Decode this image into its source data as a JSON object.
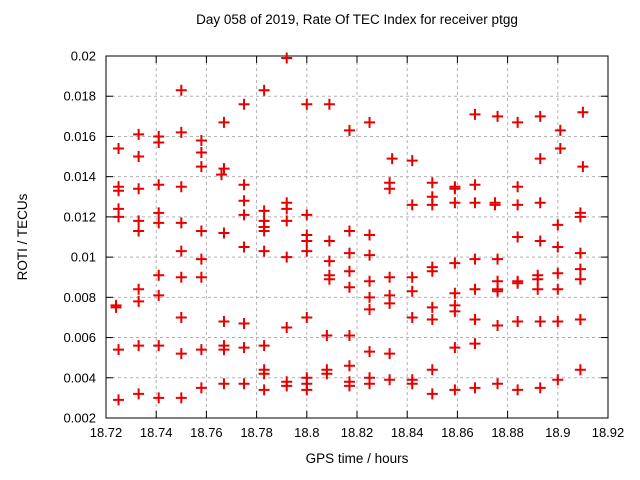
{
  "page": {
    "background": "#ffffff"
  },
  "chart_data": {
    "type": "scatter",
    "title": "Day 058 of 2019, Rate Of TEC Index for receiver ptgg",
    "xlabel": "GPS time / hours",
    "ylabel": "ROTI / TECUs",
    "xlim": [
      18.72,
      18.92
    ],
    "ylim": [
      0.002,
      0.02
    ],
    "grid": true,
    "legend": "none",
    "marker": "plus",
    "marker_color": "#e60000",
    "x_ticks": [
      18.72,
      18.74,
      18.76,
      18.78,
      18.8,
      18.82,
      18.84,
      18.86,
      18.88,
      18.9,
      18.92
    ],
    "x_tick_labels": [
      "18.72",
      "18.74",
      "18.76",
      "18.78",
      "18.8",
      "18.82",
      "18.84",
      "18.86",
      "18.88",
      "18.9",
      "18.92"
    ],
    "y_ticks": [
      0.002,
      0.004,
      0.006,
      0.008,
      0.01,
      0.012,
      0.014,
      0.016,
      0.018,
      0.02
    ],
    "y_tick_labels": [
      "0.002",
      "0.004",
      "0.006",
      "0.008",
      "0.01",
      "0.012",
      "0.014",
      "0.016",
      "0.018",
      "0.02"
    ],
    "points": [
      [
        18.725,
        0.0154
      ],
      [
        18.725,
        0.0135
      ],
      [
        18.725,
        0.0133
      ],
      [
        18.725,
        0.0124
      ],
      [
        18.725,
        0.012
      ],
      [
        18.724,
        0.0076
      ],
      [
        18.724,
        0.0075
      ],
      [
        18.725,
        0.0054
      ],
      [
        18.725,
        0.0029
      ],
      [
        18.733,
        0.0161
      ],
      [
        18.733,
        0.015
      ],
      [
        18.733,
        0.0134
      ],
      [
        18.733,
        0.0118
      ],
      [
        18.733,
        0.0113
      ],
      [
        18.733,
        0.0084
      ],
      [
        18.733,
        0.0078
      ],
      [
        18.733,
        0.0056
      ],
      [
        18.733,
        0.0032
      ],
      [
        18.741,
        0.016
      ],
      [
        18.741,
        0.0157
      ],
      [
        18.741,
        0.0136
      ],
      [
        18.741,
        0.0122
      ],
      [
        18.741,
        0.0117
      ],
      [
        18.741,
        0.0091
      ],
      [
        18.741,
        0.0081
      ],
      [
        18.741,
        0.0056
      ],
      [
        18.741,
        0.003
      ],
      [
        18.75,
        0.0183
      ],
      [
        18.75,
        0.0162
      ],
      [
        18.75,
        0.0135
      ],
      [
        18.75,
        0.0117
      ],
      [
        18.75,
        0.0103
      ],
      [
        18.75,
        0.009
      ],
      [
        18.75,
        0.007
      ],
      [
        18.75,
        0.0052
      ],
      [
        18.75,
        0.003
      ],
      [
        18.758,
        0.0158
      ],
      [
        18.758,
        0.0152
      ],
      [
        18.758,
        0.0145
      ],
      [
        18.758,
        0.0113
      ],
      [
        18.758,
        0.0099
      ],
      [
        18.758,
        0.009
      ],
      [
        18.758,
        0.0054
      ],
      [
        18.758,
        0.0035
      ],
      [
        18.767,
        0.0167
      ],
      [
        18.767,
        0.0144
      ],
      [
        18.766,
        0.0141
      ],
      [
        18.767,
        0.0112
      ],
      [
        18.767,
        0.0068
      ],
      [
        18.767,
        0.0056
      ],
      [
        18.767,
        0.0054
      ],
      [
        18.767,
        0.0037
      ],
      [
        18.775,
        0.0176
      ],
      [
        18.775,
        0.0136
      ],
      [
        18.775,
        0.0128
      ],
      [
        18.775,
        0.0121
      ],
      [
        18.775,
        0.0105
      ],
      [
        18.775,
        0.0067
      ],
      [
        18.775,
        0.0055
      ],
      [
        18.775,
        0.0037
      ],
      [
        18.783,
        0.0183
      ],
      [
        18.783,
        0.0123
      ],
      [
        18.783,
        0.0118
      ],
      [
        18.783,
        0.0115
      ],
      [
        18.783,
        0.0113
      ],
      [
        18.783,
        0.0103
      ],
      [
        18.783,
        0.0056
      ],
      [
        18.783,
        0.0044
      ],
      [
        18.783,
        0.0042
      ],
      [
        18.783,
        0.0034
      ],
      [
        18.792,
        0.0199
      ],
      [
        18.792,
        0.0127
      ],
      [
        18.792,
        0.0124
      ],
      [
        18.792,
        0.0118
      ],
      [
        18.792,
        0.01
      ],
      [
        18.792,
        0.0065
      ],
      [
        18.792,
        0.0038
      ],
      [
        18.792,
        0.0036
      ],
      [
        18.8,
        0.0176
      ],
      [
        18.8,
        0.0121
      ],
      [
        18.8,
        0.0111
      ],
      [
        18.8,
        0.0108
      ],
      [
        18.8,
        0.0103
      ],
      [
        18.8,
        0.007
      ],
      [
        18.8,
        0.004
      ],
      [
        18.8,
        0.0037
      ],
      [
        18.8,
        0.0034
      ],
      [
        18.809,
        0.0176
      ],
      [
        18.809,
        0.0108
      ],
      [
        18.809,
        0.0098
      ],
      [
        18.809,
        0.0091
      ],
      [
        18.809,
        0.0089
      ],
      [
        18.808,
        0.0061
      ],
      [
        18.808,
        0.0044
      ],
      [
        18.808,
        0.0042
      ],
      [
        18.817,
        0.0163
      ],
      [
        18.817,
        0.0113
      ],
      [
        18.817,
        0.0102
      ],
      [
        18.817,
        0.0093
      ],
      [
        18.817,
        0.0085
      ],
      [
        18.817,
        0.0061
      ],
      [
        18.817,
        0.0046
      ],
      [
        18.817,
        0.0038
      ],
      [
        18.817,
        0.0036
      ],
      [
        18.825,
        0.0167
      ],
      [
        18.825,
        0.0111
      ],
      [
        18.825,
        0.0101
      ],
      [
        18.825,
        0.0088
      ],
      [
        18.825,
        0.008
      ],
      [
        18.825,
        0.0074
      ],
      [
        18.825,
        0.0053
      ],
      [
        18.825,
        0.004
      ],
      [
        18.825,
        0.0037
      ],
      [
        18.834,
        0.0149
      ],
      [
        18.833,
        0.0137
      ],
      [
        18.833,
        0.0134
      ],
      [
        18.833,
        0.009
      ],
      [
        18.833,
        0.0081
      ],
      [
        18.833,
        0.0077
      ],
      [
        18.833,
        0.0052
      ],
      [
        18.833,
        0.0039
      ],
      [
        18.842,
        0.0148
      ],
      [
        18.842,
        0.0126
      ],
      [
        18.842,
        0.009
      ],
      [
        18.842,
        0.0083
      ],
      [
        18.842,
        0.007
      ],
      [
        18.842,
        0.0039
      ],
      [
        18.842,
        0.0037
      ],
      [
        18.85,
        0.0137
      ],
      [
        18.85,
        0.013
      ],
      [
        18.85,
        0.0126
      ],
      [
        18.85,
        0.0095
      ],
      [
        18.85,
        0.0093
      ],
      [
        18.85,
        0.0075
      ],
      [
        18.85,
        0.0069
      ],
      [
        18.85,
        0.0044
      ],
      [
        18.85,
        0.0032
      ],
      [
        18.859,
        0.0135
      ],
      [
        18.859,
        0.0134
      ],
      [
        18.859,
        0.0127
      ],
      [
        18.859,
        0.0097
      ],
      [
        18.859,
        0.0082
      ],
      [
        18.859,
        0.0076
      ],
      [
        18.859,
        0.0073
      ],
      [
        18.859,
        0.0055
      ],
      [
        18.859,
        0.0034
      ],
      [
        18.867,
        0.0171
      ],
      [
        18.867,
        0.0136
      ],
      [
        18.867,
        0.0127
      ],
      [
        18.867,
        0.0099
      ],
      [
        18.867,
        0.0084
      ],
      [
        18.867,
        0.0069
      ],
      [
        18.867,
        0.0057
      ],
      [
        18.867,
        0.0035
      ],
      [
        18.876,
        0.017
      ],
      [
        18.875,
        0.0127
      ],
      [
        18.875,
        0.0126
      ],
      [
        18.876,
        0.0099
      ],
      [
        18.876,
        0.0088
      ],
      [
        18.876,
        0.0084
      ],
      [
        18.876,
        0.0083
      ],
      [
        18.876,
        0.0066
      ],
      [
        18.876,
        0.0037
      ],
      [
        18.884,
        0.0167
      ],
      [
        18.884,
        0.0135
      ],
      [
        18.884,
        0.0126
      ],
      [
        18.884,
        0.011
      ],
      [
        18.884,
        0.0088
      ],
      [
        18.884,
        0.0087
      ],
      [
        18.884,
        0.0068
      ],
      [
        18.884,
        0.0034
      ],
      [
        18.893,
        0.017
      ],
      [
        18.893,
        0.0149
      ],
      [
        18.893,
        0.0127
      ],
      [
        18.893,
        0.0108
      ],
      [
        18.892,
        0.0091
      ],
      [
        18.892,
        0.0089
      ],
      [
        18.892,
        0.0084
      ],
      [
        18.893,
        0.0068
      ],
      [
        18.893,
        0.0035
      ],
      [
        18.901,
        0.0163
      ],
      [
        18.901,
        0.0154
      ],
      [
        18.9,
        0.0116
      ],
      [
        18.9,
        0.0105
      ],
      [
        18.9,
        0.0092
      ],
      [
        18.9,
        0.0084
      ],
      [
        18.9,
        0.0068
      ],
      [
        18.9,
        0.0039
      ],
      [
        18.91,
        0.0172
      ],
      [
        18.91,
        0.0145
      ],
      [
        18.909,
        0.0122
      ],
      [
        18.909,
        0.012
      ],
      [
        18.909,
        0.0102
      ],
      [
        18.909,
        0.0094
      ],
      [
        18.909,
        0.0089
      ],
      [
        18.909,
        0.0069
      ],
      [
        18.909,
        0.0044
      ]
    ]
  }
}
